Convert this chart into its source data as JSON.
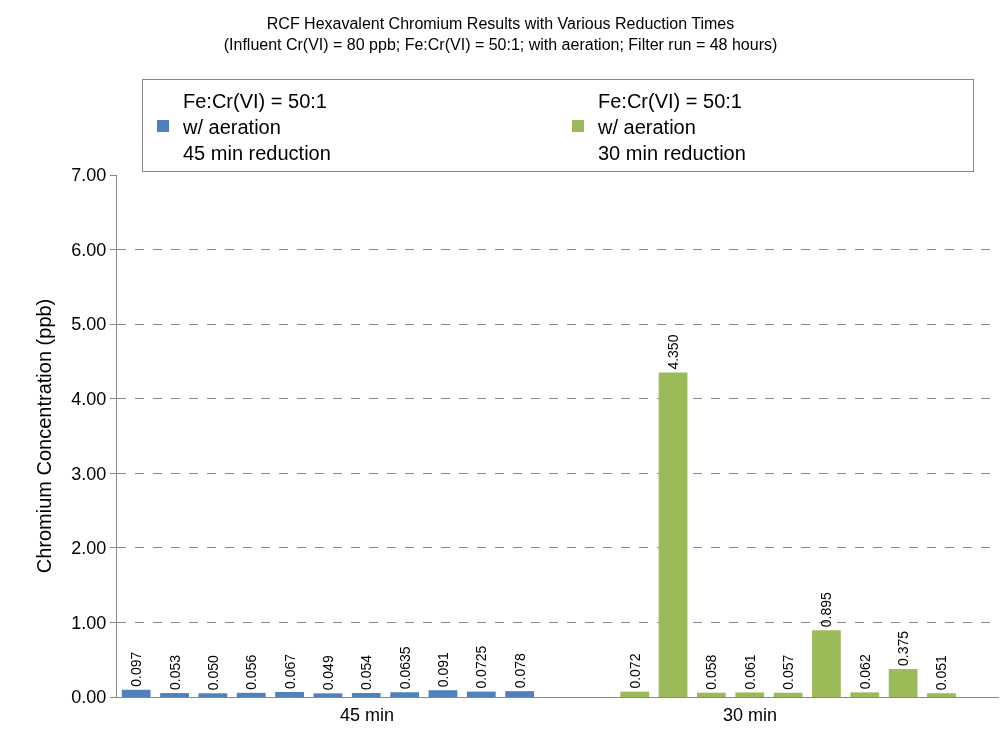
{
  "chart_data": {
    "type": "bar",
    "title": "RCF Hexavalent Chromium Results with Various Reduction Times",
    "subtitle": "(Influent Cr(VI) = 80 ppb; Fe:Cr(VI) = 50:1; with aeration; Filter run = 48 hours)",
    "ylabel": "Chromium Concentration (ppb)",
    "categories": [
      null,
      null,
      null,
      null,
      null,
      null,
      null,
      null,
      null,
      null,
      null,
      null,
      null,
      null,
      null,
      null,
      null,
      null,
      null,
      null,
      null,
      null,
      null
    ],
    "series": [
      {
        "name": "Fe:Cr(VI) = 50:1\nw/ aeration\n45 min reduction",
        "color": "#4f81bd",
        "values": [
          0.097,
          0.053,
          0.05,
          0.056,
          0.067,
          0.049,
          0.054,
          0.0635,
          0.091,
          0.0725,
          0.078,
          null,
          null,
          null,
          null,
          null,
          null,
          null,
          null,
          null,
          null,
          null,
          null
        ],
        "value_labels": [
          "0.097",
          "0.053",
          "0.050",
          "0.056",
          "0.067",
          "0.049",
          "0.054",
          "0.0635",
          "0.091",
          "0.0725",
          "0.078",
          null,
          null,
          null,
          null,
          null,
          null,
          null,
          null,
          null,
          null,
          null,
          null
        ]
      },
      {
        "name": "Fe:Cr(VI) = 50:1\nw/ aeration\n30 min reduction",
        "color": "#9bbb59",
        "values": [
          null,
          null,
          null,
          null,
          null,
          null,
          null,
          null,
          null,
          null,
          null,
          null,
          null,
          0.072,
          4.35,
          0.058,
          0.061,
          0.057,
          0.895,
          0.062,
          0.375,
          0.051,
          null
        ],
        "value_labels": [
          null,
          null,
          null,
          null,
          null,
          null,
          null,
          null,
          null,
          null,
          null,
          null,
          null,
          "0.072",
          "4.350",
          "0.058",
          "0.061",
          "0.057",
          "0.895",
          "0.062",
          "0.375",
          "0.051",
          null
        ]
      }
    ],
    "annotations": [
      "45 min",
      "30 min"
    ],
    "ylim": [
      0,
      7
    ],
    "yticks": [
      {
        "value": 0,
        "label": "0.00"
      },
      {
        "value": 1,
        "label": "1.00"
      },
      {
        "value": 2,
        "label": "2.00"
      },
      {
        "value": 3,
        "label": "3.00"
      },
      {
        "value": 4,
        "label": "4.00"
      },
      {
        "value": 5,
        "label": "5.00"
      },
      {
        "value": 6,
        "label": "6.00"
      },
      {
        "value": 7,
        "label": "7.00"
      }
    ],
    "grid": "y",
    "legend": "top"
  }
}
